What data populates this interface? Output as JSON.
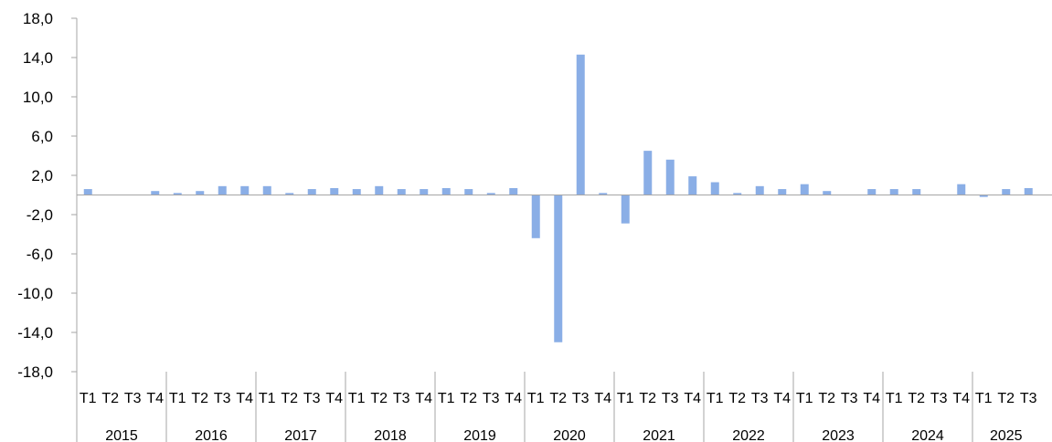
{
  "chart_data": {
    "type": "bar",
    "title": "",
    "xlabel": "",
    "ylabel": "",
    "ylim": [
      -18,
      18
    ],
    "yticks": [
      "18,0",
      "14,0",
      "10,0",
      "6,0",
      "2,0",
      "-2,0",
      "-6,0",
      "-10,0",
      "-14,0",
      "-18,0"
    ],
    "ytick_values": [
      18,
      14,
      10,
      6,
      2,
      -2,
      -6,
      -10,
      -14,
      -18
    ],
    "grid": false,
    "legend": "none",
    "bar_color": "#8aaee6",
    "axis_color": "#a6a6a6",
    "groups": [
      {
        "year": "2015",
        "quarters": [
          "T1",
          "T2",
          "T3",
          "T4"
        ]
      },
      {
        "year": "2016",
        "quarters": [
          "T1",
          "T2",
          "T3",
          "T4"
        ]
      },
      {
        "year": "2017",
        "quarters": [
          "T1",
          "T2",
          "T3",
          "T4"
        ]
      },
      {
        "year": "2018",
        "quarters": [
          "T1",
          "T2",
          "T3",
          "T4"
        ]
      },
      {
        "year": "2019",
        "quarters": [
          "T1",
          "T2",
          "T3",
          "T4"
        ]
      },
      {
        "year": "2020",
        "quarters": [
          "T1",
          "T2",
          "T3",
          "T4"
        ]
      },
      {
        "year": "2021",
        "quarters": [
          "T1",
          "T2",
          "T3",
          "T4"
        ]
      },
      {
        "year": "2022",
        "quarters": [
          "T1",
          "T2",
          "T3",
          "T4"
        ]
      },
      {
        "year": "2023",
        "quarters": [
          "T1",
          "T2",
          "T3",
          "T4"
        ]
      },
      {
        "year": "2024",
        "quarters": [
          "T1",
          "T2",
          "T3",
          "T4"
        ]
      },
      {
        "year": "2025",
        "quarters": [
          "T1",
          "T2",
          "T3"
        ]
      }
    ],
    "values": [
      0.6,
      0.0,
      0.0,
      0.4,
      0.2,
      0.4,
      0.9,
      0.9,
      0.9,
      0.2,
      0.6,
      0.7,
      0.6,
      0.9,
      0.6,
      0.6,
      0.7,
      0.6,
      0.2,
      0.7,
      -4.4,
      -15.0,
      14.3,
      0.2,
      -2.9,
      4.5,
      3.6,
      1.9,
      1.3,
      0.2,
      0.9,
      0.6,
      1.1,
      0.4,
      0.0,
      0.6,
      0.6,
      0.6,
      0.0,
      1.1,
      -0.2,
      0.6,
      0.7
    ]
  }
}
